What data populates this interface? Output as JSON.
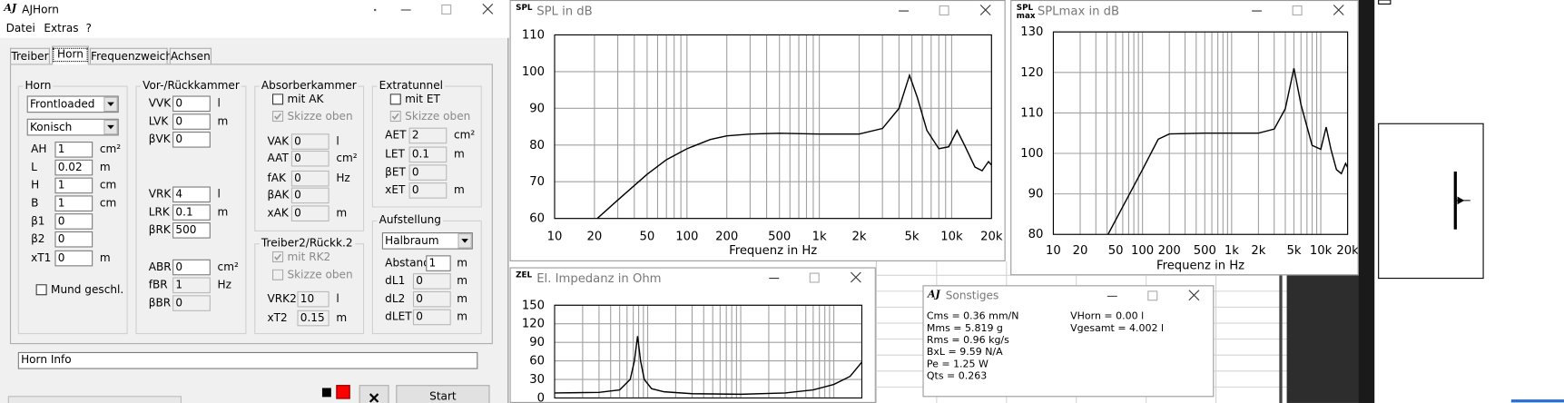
{
  "main_window": {
    "icon": "AJ",
    "title": "AJHorn",
    "menu": [
      "Datei",
      "Extras",
      "?"
    ],
    "tabs": [
      "Treiber",
      "Horn",
      "Frequenzweiche",
      "Achsen"
    ],
    "active_tab": 1,
    "groups": [
      {
        "title": "Horn",
        "items": [
          {
            "select": "Frontloaded"
          },
          {
            "select": "Konisch"
          },
          {
            "label": "AH",
            "value": "1",
            "unit": "cm²"
          },
          {
            "label": "L",
            "value": "0.02",
            "unit": "m"
          },
          {
            "label": "H",
            "value": "1",
            "unit": "cm"
          },
          {
            "label": "B",
            "value": "1",
            "unit": "cm"
          },
          {
            "label": "β1",
            "value": "0"
          },
          {
            "label": "β2",
            "value": "0"
          },
          {
            "label": "xT1",
            "value": "0",
            "unit": "m"
          },
          {
            "checkbox": "Mund geschl.",
            "checked": false
          }
        ]
      },
      {
        "title": "Vor-/Rückkammer",
        "items": [
          {
            "label": "VVK",
            "value": "0",
            "unit": "l"
          },
          {
            "label": "LVK",
            "value": "0",
            "unit": "m"
          },
          {
            "label": "βVK",
            "value": "0"
          },
          {
            "label": "VRK",
            "value": "4",
            "unit": "l"
          },
          {
            "label": "LRK",
            "value": "0.1",
            "unit": "m"
          },
          {
            "label": "βRK",
            "value": "500"
          },
          {
            "label": "ABR",
            "value": "0",
            "unit": "cm²"
          },
          {
            "label": "fBR",
            "value": "1",
            "unit": "Hz",
            "disabled": true
          },
          {
            "label": "βBR",
            "value": "0",
            "disabled": true
          }
        ]
      },
      {
        "title": "Absorberkammer",
        "items": [
          {
            "checkbox": "mit AK",
            "checked": false
          },
          {
            "checkbox": "Skizze oben",
            "checked": true,
            "disabled": true
          },
          {
            "label": "VAK",
            "value": "0",
            "unit": "l",
            "disabled": true
          },
          {
            "label": "AAT",
            "value": "0",
            "unit": "cm²",
            "disabled": true
          },
          {
            "label": "fAK",
            "value": "0",
            "unit": "Hz",
            "disabled": true
          },
          {
            "label": "βAK",
            "value": "0",
            "disabled": true
          },
          {
            "label": "xAK",
            "value": "0",
            "unit": "m",
            "disabled": true
          }
        ]
      },
      {
        "title": "Extratunnel",
        "items": [
          {
            "checkbox": "mit ET",
            "checked": false
          },
          {
            "checkbox": "Skizze oben",
            "checked": true,
            "disabled": true
          },
          {
            "label": "AET",
            "value": "2",
            "unit": "cm²",
            "disabled": true
          },
          {
            "label": "LET",
            "value": "0.1",
            "unit": "m",
            "disabled": true
          },
          {
            "label": "βET",
            "value": "0",
            "disabled": true
          },
          {
            "label": "xET",
            "value": "0",
            "unit": "m",
            "disabled": true
          }
        ]
      },
      {
        "title": "Treiber2/Rückk.2",
        "items": [
          {
            "checkbox": "mit RK2",
            "checked": true,
            "disabled": true
          },
          {
            "checkbox": "Skizze oben",
            "checked": false,
            "disabled": true
          },
          {
            "label": "VRK2",
            "value": "10",
            "unit": "l",
            "disabled": true
          },
          {
            "label": "xT2",
            "value": "0.15",
            "unit": "m",
            "disabled": true
          }
        ]
      },
      {
        "title": "Aufstellung",
        "items": [
          {
            "select": "Halbraum"
          },
          {
            "label": "Abstand",
            "value": "1",
            "unit": "m"
          },
          {
            "label": "dL1",
            "value": "0",
            "unit": "m",
            "disabled": true
          },
          {
            "label": "dL2",
            "value": "0",
            "unit": "m",
            "disabled": true
          },
          {
            "label": "dLET",
            "value": "0",
            "unit": "m",
            "disabled": true
          }
        ]
      }
    ],
    "info": "Horn Info",
    "start": "Start"
  },
  "chart_data": [
    {
      "type": "line",
      "icon": "SPL",
      "title": "SPL in dB",
      "xlabel": "Frequenz in Hz",
      "xscale": "log",
      "grid": true,
      "color": "#000000",
      "xlim": [
        10,
        20000
      ],
      "xticks": [
        10,
        20,
        50,
        100,
        200,
        500,
        {
          "value": 1000,
          "label": "1k"
        },
        {
          "value": 2000,
          "label": "2k"
        },
        {
          "value": 5000,
          "label": "5k"
        },
        {
          "value": 10000,
          "label": "10k"
        },
        {
          "value": 20000,
          "label": "20k"
        }
      ],
      "xgridlines": [
        30,
        40,
        60,
        70,
        80,
        90,
        300,
        400,
        600,
        700,
        800,
        900,
        3000,
        4000,
        6000,
        7000,
        8000,
        9000
      ],
      "ylim": [
        60,
        110
      ],
      "yticks": [
        60,
        70,
        80,
        90,
        100,
        110
      ],
      "x": [
        21,
        30,
        50,
        70,
        100,
        150,
        200,
        300,
        500,
        1000,
        2000,
        3000,
        4000,
        4800,
        5500,
        6500,
        8000,
        9500,
        11000,
        12500,
        15000,
        17000,
        19000,
        20000
      ],
      "values": [
        60,
        65,
        72,
        76,
        79,
        81.5,
        82.5,
        83,
        83.2,
        83,
        83,
        84.5,
        90,
        99,
        93,
        84,
        79,
        79.5,
        84,
        80,
        74,
        73,
        75.5,
        74.5
      ]
    },
    {
      "type": "line",
      "icon": "SPL max",
      "title": "SPLmax in dB",
      "xlabel": "Frequenz in Hz",
      "xscale": "log",
      "grid": true,
      "color": "#000000",
      "xlim": [
        10,
        20000
      ],
      "xticks": [
        10,
        20,
        50,
        100,
        200,
        500,
        {
          "value": 1000,
          "label": "1k"
        },
        {
          "value": 2000,
          "label": "2k"
        },
        {
          "value": 5000,
          "label": "5k"
        },
        {
          "value": 10000,
          "label": "10k"
        },
        {
          "value": 20000,
          "label": "20k"
        }
      ],
      "xgridlines": [
        30,
        40,
        60,
        70,
        80,
        90,
        300,
        400,
        600,
        700,
        800,
        900,
        3000,
        4000,
        6000,
        7000,
        8000,
        9000
      ],
      "ylim": [
        80,
        130
      ],
      "yticks": [
        80,
        90,
        100,
        110,
        120,
        130
      ],
      "x": [
        41,
        100,
        150,
        200,
        500,
        1000,
        2000,
        3000,
        4000,
        5000,
        6000,
        8000,
        10000,
        11500,
        13000,
        15000,
        17000,
        19000,
        20000
      ],
      "values": [
        80,
        96,
        103.5,
        104.8,
        105,
        105,
        105,
        106,
        111,
        121,
        112,
        102,
        101,
        106.5,
        101,
        96,
        95,
        97.5,
        96.5
      ]
    },
    {
      "type": "line",
      "icon": "ZEL",
      "title": "El. Impedanz in Ohm",
      "xscale": "log",
      "grid": true,
      "color": "#000000",
      "xlim": [
        10,
        20000
      ],
      "xgridlines": [
        20,
        30,
        40,
        50,
        60,
        70,
        80,
        90,
        100,
        200,
        300,
        400,
        500,
        600,
        700,
        800,
        900,
        1000,
        2000,
        3000,
        4000,
        5000,
        6000,
        7000,
        8000,
        9000,
        10000
      ],
      "ylim": [
        0,
        150
      ],
      "yticks": [
        0,
        30,
        60,
        90,
        120,
        150
      ],
      "x": [
        10,
        30,
        50,
        65,
        72,
        78,
        84,
        92,
        110,
        150,
        300,
        1000,
        3000,
        6000,
        10000,
        15000,
        20000
      ],
      "values": [
        8,
        9,
        13,
        30,
        60,
        100,
        60,
        30,
        15,
        10,
        7,
        6,
        8,
        13,
        22,
        35,
        58
      ]
    }
  ],
  "sonstiges_window": {
    "icon": "AJ",
    "title": "Sonstiges",
    "lines_left": [
      "Cms = 0.36 mm/N",
      "Mms = 5.819 g",
      "Rms = 0.96 kg/s",
      "BxL = 9.59 N/A",
      "Pe = 1.25 W",
      "Qts = 0.263"
    ],
    "lines_right": [
      "VHorn = 0.00 l",
      "Vgesamt = 4.002 l"
    ]
  }
}
